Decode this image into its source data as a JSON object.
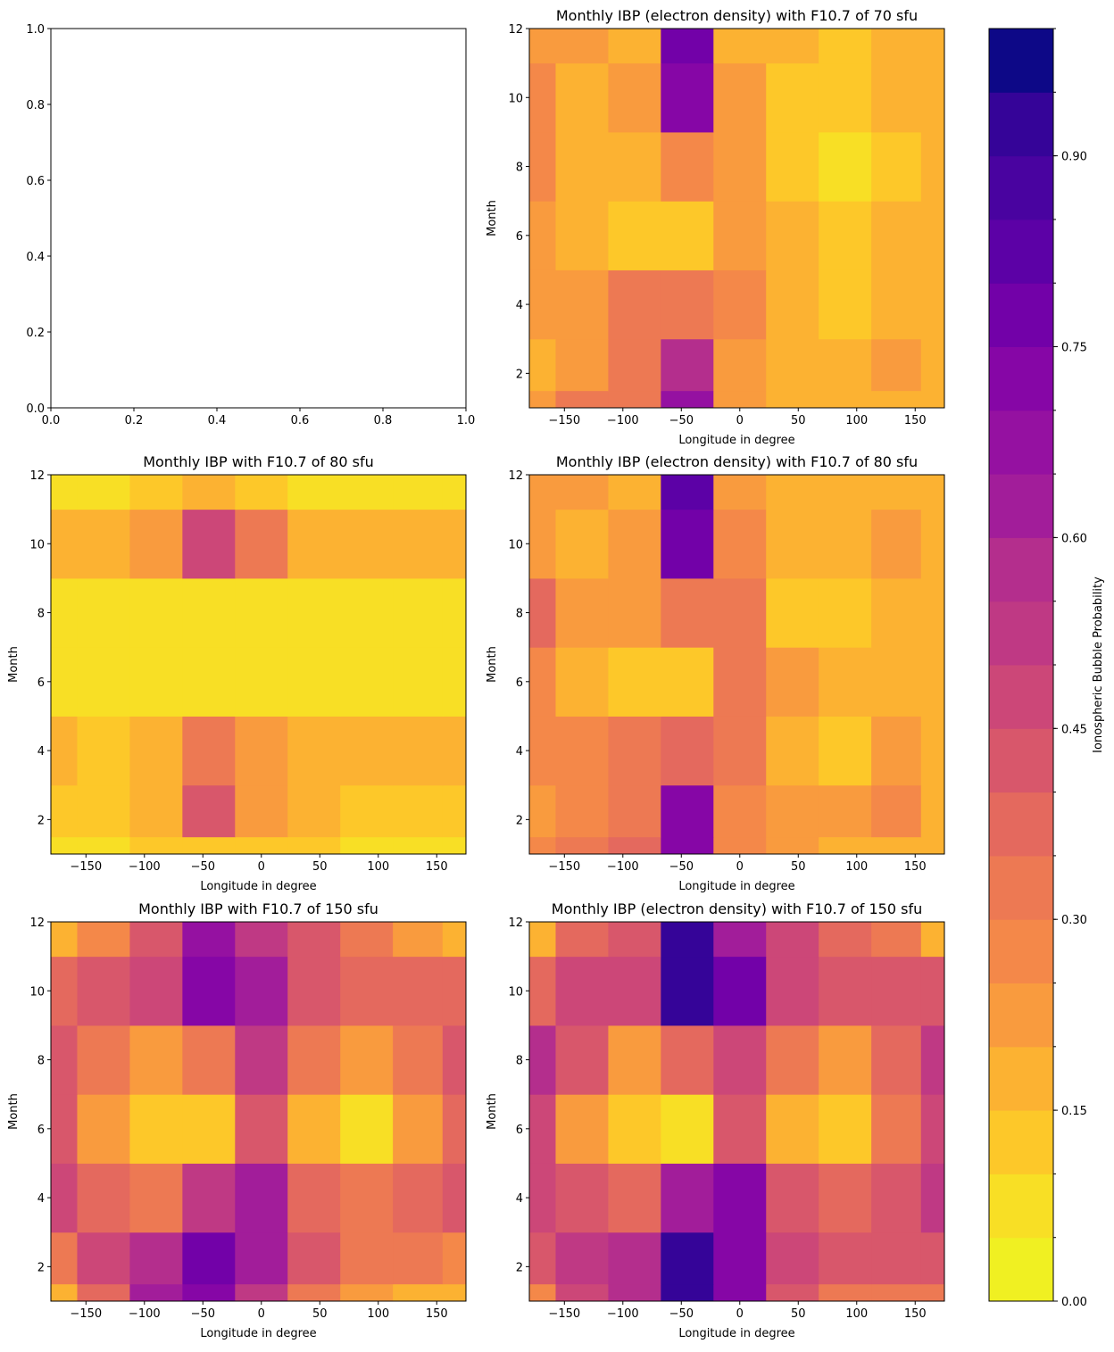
{
  "chart_data": [
    {
      "type": "axes",
      "xlim": [
        0,
        1
      ],
      "ylim": [
        0,
        1
      ],
      "xticks": [
        {
          "value": 0,
          "label": "0.0"
        },
        {
          "value": 0.2,
          "label": "0.2"
        },
        {
          "value": 0.4,
          "label": "0.4"
        },
        {
          "value": 0.6,
          "label": "0.6"
        },
        {
          "value": 0.8,
          "label": "0.8"
        },
        {
          "value": 1,
          "label": "1.0"
        }
      ],
      "yticks": [
        {
          "value": 0,
          "label": "0.0"
        },
        {
          "value": 0.2,
          "label": "0.2"
        },
        {
          "value": 0.4,
          "label": "0.4"
        },
        {
          "value": 0.6,
          "label": "0.6"
        },
        {
          "value": 0.8,
          "label": "0.8"
        },
        {
          "value": 1,
          "label": "1.0"
        }
      ]
    },
    {
      "type": "contour",
      "title": "Monthly IBP (electron density) with F10.7 of 70 sfu",
      "xlabel": "Longitude in degree",
      "ylabel": "Month",
      "x": [
        -180,
        -135,
        -90,
        -45,
        0,
        45,
        90,
        135,
        175
      ],
      "y": [
        1,
        2,
        4,
        6,
        8,
        10,
        12
      ],
      "z": [
        [
          0.2,
          0.3,
          0.3,
          0.65,
          0.2,
          0.15,
          0.15,
          0.15,
          0.15
        ],
        [
          0.15,
          0.2,
          0.3,
          0.55,
          0.2,
          0.15,
          0.15,
          0.2,
          0.15
        ],
        [
          0.2,
          0.2,
          0.3,
          0.3,
          0.25,
          0.15,
          0.1,
          0.15,
          0.15
        ],
        [
          0.2,
          0.15,
          0.1,
          0.1,
          0.2,
          0.15,
          0.1,
          0.15,
          0.15
        ],
        [
          0.25,
          0.15,
          0.15,
          0.25,
          0.2,
          0.1,
          0.05,
          0.1,
          0.15
        ],
        [
          0.25,
          0.15,
          0.2,
          0.7,
          0.2,
          0.1,
          0.1,
          0.15,
          0.15
        ],
        [
          0.2,
          0.2,
          0.15,
          0.75,
          0.15,
          0.15,
          0.1,
          0.15,
          0.15
        ]
      ],
      "xlim": [
        -180,
        175
      ],
      "ylim": [
        1,
        12
      ],
      "xticks": [
        {
          "value": -150,
          "label": "−150"
        },
        {
          "value": -100,
          "label": "−100"
        },
        {
          "value": -50,
          "label": "−50"
        },
        0,
        50,
        100,
        150
      ],
      "yticks": [
        2,
        4,
        6,
        8,
        10,
        12
      ]
    },
    {
      "type": "contour",
      "title": "Monthly IBP with F10.7 of 80 sfu",
      "xlabel": "Longitude in degree",
      "ylabel": "Month",
      "x": [
        -180,
        -135,
        -90,
        -45,
        0,
        45,
        90,
        135,
        175
      ],
      "y": [
        1,
        2,
        4,
        6,
        8,
        10,
        12
      ],
      "z": [
        [
          0.05,
          0.05,
          0.1,
          0.1,
          0.1,
          0.1,
          0.05,
          0.05,
          0.05
        ],
        [
          0.1,
          0.1,
          0.15,
          0.4,
          0.2,
          0.15,
          0.1,
          0.1,
          0.1
        ],
        [
          0.15,
          0.1,
          0.15,
          0.3,
          0.2,
          0.15,
          0.15,
          0.15,
          0.15
        ],
        [
          0.05,
          0.05,
          0.05,
          0.05,
          0.05,
          0.05,
          0.05,
          0.05,
          0.05
        ],
        [
          0.05,
          0.05,
          0.05,
          0.05,
          0.05,
          0.05,
          0.05,
          0.05,
          0.05
        ],
        [
          0.15,
          0.15,
          0.2,
          0.45,
          0.3,
          0.15,
          0.15,
          0.15,
          0.15
        ],
        [
          0.05,
          0.05,
          0.1,
          0.15,
          0.1,
          0.05,
          0.05,
          0.05,
          0.05
        ]
      ],
      "xlim": [
        -180,
        175
      ],
      "ylim": [
        1,
        12
      ],
      "xticks": [
        {
          "value": -150,
          "label": "−150"
        },
        {
          "value": -100,
          "label": "−100"
        },
        {
          "value": -50,
          "label": "−50"
        },
        0,
        50,
        100,
        150
      ],
      "yticks": [
        2,
        4,
        6,
        8,
        10,
        12
      ]
    },
    {
      "type": "contour",
      "title": "Monthly IBP (electron density) with F10.7 of 80 sfu",
      "xlabel": "Longitude in degree",
      "ylabel": "Month",
      "x": [
        -180,
        -135,
        -90,
        -45,
        0,
        45,
        90,
        135,
        175
      ],
      "y": [
        1,
        2,
        4,
        6,
        8,
        10,
        12
      ],
      "z": [
        [
          0.25,
          0.3,
          0.35,
          0.7,
          0.25,
          0.2,
          0.15,
          0.15,
          0.15
        ],
        [
          0.2,
          0.25,
          0.3,
          0.7,
          0.25,
          0.2,
          0.2,
          0.25,
          0.15
        ],
        [
          0.25,
          0.25,
          0.3,
          0.35,
          0.3,
          0.15,
          0.1,
          0.2,
          0.15
        ],
        [
          0.25,
          0.15,
          0.1,
          0.1,
          0.3,
          0.2,
          0.15,
          0.15,
          0.15
        ],
        [
          0.35,
          0.2,
          0.2,
          0.3,
          0.3,
          0.1,
          0.1,
          0.15,
          0.15
        ],
        [
          0.2,
          0.15,
          0.2,
          0.75,
          0.25,
          0.15,
          0.15,
          0.2,
          0.15
        ],
        [
          0.2,
          0.2,
          0.15,
          0.8,
          0.2,
          0.15,
          0.15,
          0.15,
          0.15
        ]
      ],
      "xlim": [
        -180,
        175
      ],
      "ylim": [
        1,
        12
      ],
      "xticks": [
        {
          "value": -150,
          "label": "−150"
        },
        {
          "value": -100,
          "label": "−100"
        },
        {
          "value": -50,
          "label": "−50"
        },
        0,
        50,
        100,
        150
      ],
      "yticks": [
        2,
        4,
        6,
        8,
        10,
        12
      ]
    },
    {
      "type": "contour",
      "title": "Monthly IBP with F10.7 of 150 sfu",
      "xlabel": "Longitude in degree",
      "ylabel": "Month",
      "x": [
        -180,
        -135,
        -90,
        -45,
        0,
        45,
        90,
        135,
        175
      ],
      "y": [
        1,
        2,
        4,
        6,
        8,
        10,
        12
      ],
      "z": [
        [
          0.15,
          0.35,
          0.6,
          0.7,
          0.5,
          0.3,
          0.2,
          0.15,
          0.15
        ],
        [
          0.3,
          0.45,
          0.55,
          0.75,
          0.6,
          0.4,
          0.3,
          0.3,
          0.25
        ],
        [
          0.45,
          0.35,
          0.3,
          0.5,
          0.6,
          0.35,
          0.3,
          0.35,
          0.4
        ],
        [
          0.4,
          0.2,
          0.1,
          0.1,
          0.4,
          0.15,
          0.05,
          0.2,
          0.35
        ],
        [
          0.4,
          0.3,
          0.2,
          0.3,
          0.5,
          0.3,
          0.2,
          0.3,
          0.4
        ],
        [
          0.35,
          0.4,
          0.45,
          0.7,
          0.6,
          0.4,
          0.35,
          0.35,
          0.35
        ],
        [
          0.15,
          0.25,
          0.4,
          0.65,
          0.5,
          0.4,
          0.3,
          0.2,
          0.15
        ]
      ],
      "xlim": [
        -180,
        175
      ],
      "ylim": [
        1,
        12
      ],
      "xticks": [
        {
          "value": -150,
          "label": "−150"
        },
        {
          "value": -100,
          "label": "−100"
        },
        {
          "value": -50,
          "label": "−50"
        },
        0,
        50,
        100,
        150
      ],
      "yticks": [
        2,
        4,
        6,
        8,
        10,
        12
      ]
    },
    {
      "type": "contour",
      "title": "Monthly IBP (electron density) with F10.7 of 150 sfu",
      "xlabel": "Longitude in degree",
      "ylabel": "Month",
      "x": [
        -180,
        -135,
        -90,
        -45,
        0,
        45,
        90,
        135,
        175
      ],
      "y": [
        1,
        2,
        4,
        6,
        8,
        10,
        12
      ],
      "z": [
        [
          0.25,
          0.45,
          0.55,
          0.9,
          0.7,
          0.4,
          0.3,
          0.3,
          0.3
        ],
        [
          0.4,
          0.5,
          0.55,
          0.9,
          0.7,
          0.45,
          0.4,
          0.4,
          0.4
        ],
        [
          0.45,
          0.4,
          0.35,
          0.6,
          0.7,
          0.4,
          0.35,
          0.4,
          0.5
        ],
        [
          0.45,
          0.2,
          0.1,
          0.05,
          0.4,
          0.15,
          0.1,
          0.3,
          0.45
        ],
        [
          0.55,
          0.4,
          0.2,
          0.35,
          0.45,
          0.3,
          0.2,
          0.35,
          0.5
        ],
        [
          0.35,
          0.45,
          0.45,
          0.9,
          0.75,
          0.45,
          0.4,
          0.4,
          0.4
        ],
        [
          0.15,
          0.35,
          0.4,
          0.9,
          0.6,
          0.45,
          0.35,
          0.3,
          0.15
        ]
      ],
      "xlim": [
        -180,
        175
      ],
      "ylim": [
        1,
        12
      ],
      "xticks": [
        {
          "value": -150,
          "label": "−150"
        },
        {
          "value": -100,
          "label": "−100"
        },
        {
          "value": -50,
          "label": "−50"
        },
        0,
        50,
        100,
        150
      ],
      "yticks": [
        2,
        4,
        6,
        8,
        10,
        12
      ]
    },
    {
      "type": "colorbar",
      "label": "Ionospheric Bubble Probability",
      "levels": [
        0,
        0.05,
        0.1,
        0.15,
        0.2,
        0.25,
        0.3,
        0.35,
        0.4,
        0.45,
        0.5,
        0.55,
        0.6,
        0.65,
        0.7,
        0.75,
        0.8,
        0.85,
        0.9,
        0.95,
        1
      ],
      "colors": [
        "#f0f022",
        "#f8df25",
        "#fdc829",
        "#fcb232",
        "#f99b3e",
        "#f48849",
        "#ed7953",
        "#e4695e",
        "#d8576b",
        "#cc4778",
        "#bf3984",
        "#b42e8d",
        "#a21d9a",
        "#9511a1",
        "#8606a6",
        "#7201a8",
        "#5c01a6",
        "#4903a0",
        "#350498",
        "#0d0887"
      ],
      "ylim": [
        0,
        1
      ],
      "yticks": [
        {
          "value": 0,
          "label": "0.00"
        },
        {
          "value": 0.15,
          "label": "0.15"
        },
        {
          "value": 0.3,
          "label": "0.30"
        },
        {
          "value": 0.45,
          "label": "0.45"
        },
        {
          "value": 0.6,
          "label": "0.60"
        },
        {
          "value": 0.75,
          "label": "0.75"
        },
        {
          "value": 0.9,
          "label": "0.90"
        }
      ]
    }
  ]
}
